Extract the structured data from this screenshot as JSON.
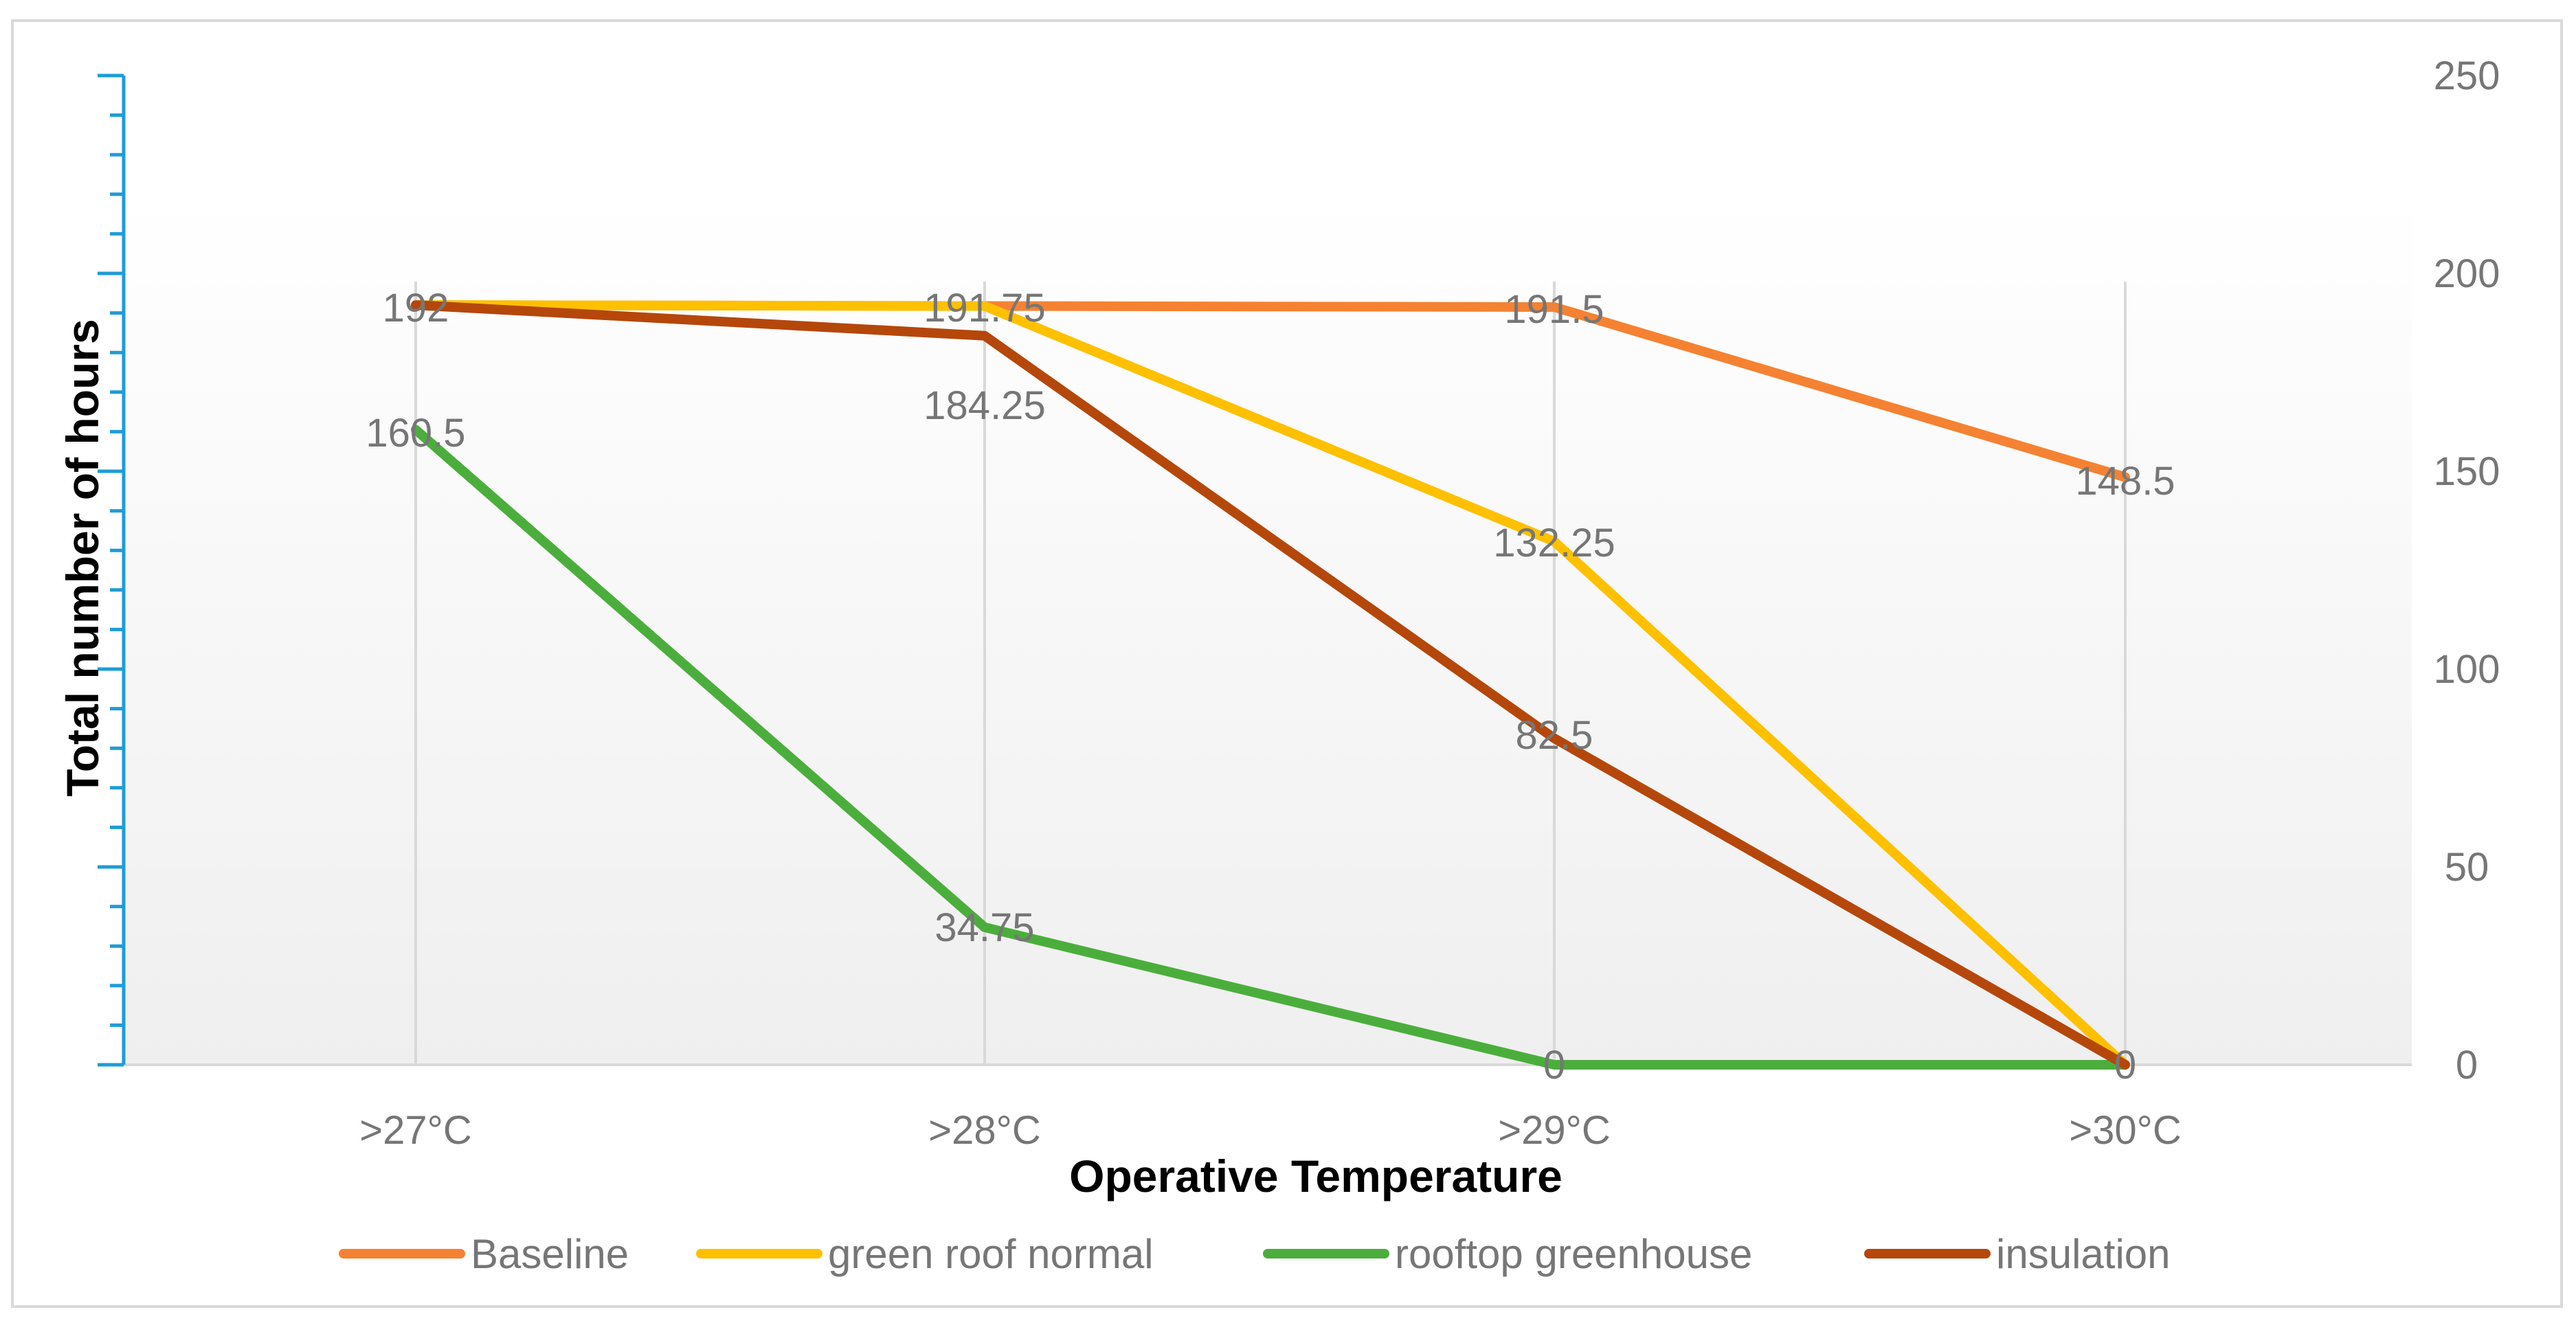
{
  "chart_data": {
    "type": "line",
    "title": "",
    "xlabel": "Operative Temperature",
    "ylabel": "Total number of hours",
    "categories": [
      ">27°C",
      ">28°C",
      ">29°C",
      ">30°C"
    ],
    "ylim": [
      0,
      250
    ],
    "yticks": [
      0,
      50,
      100,
      150,
      200,
      250
    ],
    "grid": "vertical",
    "legend_position": "bottom",
    "series": [
      {
        "name": "Baseline",
        "color": "#F58232",
        "values": [
          192,
          191.75,
          191.5,
          148.5
        ],
        "labels": [
          "",
          "",
          "191.5",
          "148.5"
        ]
      },
      {
        "name": "green roof normal",
        "color": "#FFC000",
        "values": [
          192,
          191.75,
          132.25,
          0
        ],
        "labels": [
          "",
          "191.75",
          "132.25",
          ""
        ]
      },
      {
        "name": "rooftop greenhouse",
        "color": "#4BAE3C",
        "values": [
          160.5,
          34.75,
          0,
          0
        ],
        "labels": [
          "160.5",
          "34.75",
          "0",
          "0"
        ]
      },
      {
        "name": "insulation",
        "color": "#B5470B",
        "values": [
          192,
          184.25,
          82.5,
          0
        ],
        "labels": [
          "192",
          "184.25",
          "82.5",
          ""
        ]
      }
    ],
    "colors": {
      "left_axis": "#1E9CD7",
      "grid": "#D9D9D9",
      "tick_text": "#767676",
      "frame": "#D9D9D9"
    }
  }
}
